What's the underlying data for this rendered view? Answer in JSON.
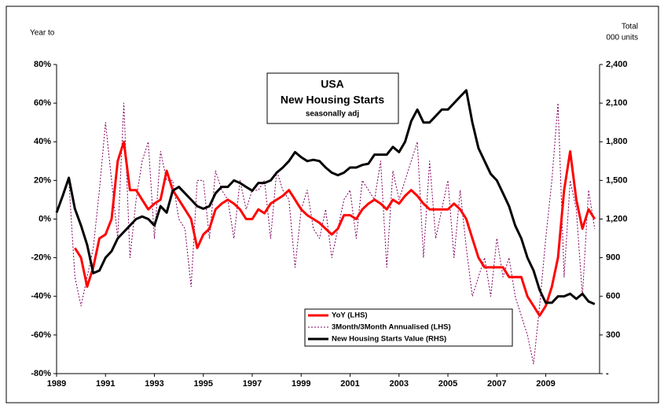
{
  "chart_data": {
    "type": "line",
    "title": [
      "USA",
      "New Housing Starts"
    ],
    "subtitle": "seasonally adj",
    "y_label": "Year to",
    "y2_label": [
      "Total",
      "000 units"
    ],
    "xlim": [
      1989,
      2011.2
    ],
    "xticks": [
      1989,
      1991,
      1993,
      1995,
      1997,
      1999,
      2001,
      2003,
      2005,
      2007,
      2009
    ],
    "ylim": [
      -80,
      80
    ],
    "yticks": [
      {
        "value": -80,
        "label": "-80%"
      },
      {
        "value": -60,
        "label": "-60%"
      },
      {
        "value": -40,
        "label": "-40%"
      },
      {
        "value": -20,
        "label": "-20%"
      },
      {
        "value": 0,
        "label": "0%"
      },
      {
        "value": 20,
        "label": "20%"
      },
      {
        "value": 40,
        "label": "40%"
      },
      {
        "value": 60,
        "label": "60%"
      },
      {
        "value": 80,
        "label": "80%"
      }
    ],
    "y2lim": [
      0,
      2400
    ],
    "y2ticks": [
      {
        "value": 0,
        "label": "-"
      },
      300,
      600,
      900,
      {
        "value": 1200,
        "label": "1,200"
      },
      {
        "value": 1500,
        "label": "1,500"
      },
      {
        "value": 1800,
        "label": "1,800"
      },
      {
        "value": 2100,
        "label": "2,100"
      },
      {
        "value": 2400,
        "label": "2,400"
      }
    ],
    "grid": false,
    "legend_position": "bottom",
    "x": [
      1989,
      1989.25,
      1989.5,
      1989.75,
      1990,
      1990.25,
      1990.5,
      1990.75,
      1991,
      1991.25,
      1991.5,
      1991.75,
      1992,
      1992.25,
      1992.5,
      1992.75,
      1993,
      1993.25,
      1993.5,
      1993.75,
      1994,
      1994.25,
      1994.5,
      1994.75,
      1995,
      1995.25,
      1995.5,
      1995.75,
      1996,
      1996.25,
      1996.5,
      1996.75,
      1997,
      1997.25,
      1997.5,
      1997.75,
      1998,
      1998.25,
      1998.5,
      1998.75,
      1999,
      1999.25,
      1999.5,
      1999.75,
      2000,
      2000.25,
      2000.5,
      2000.75,
      2001,
      2001.25,
      2001.5,
      2001.75,
      2002,
      2002.25,
      2002.5,
      2002.75,
      2003,
      2003.25,
      2003.5,
      2003.75,
      2004,
      2004.25,
      2004.5,
      2004.75,
      2005,
      2005.25,
      2005.5,
      2005.75,
      2006,
      2006.25,
      2006.5,
      2006.75,
      2007,
      2007.25,
      2007.5,
      2007.75,
      2008,
      2008.25,
      2008.5,
      2008.75,
      2009,
      2009.25,
      2009.5,
      2009.75,
      2010,
      2010.25,
      2010.5,
      2010.75,
      2011
    ],
    "series": [
      {
        "name": "YoY (LHS)",
        "color": "#ff0000",
        "width": 3,
        "dash": "none",
        "values": [
          null,
          null,
          null,
          -15,
          -20,
          -35,
          -25,
          -10,
          -8,
          0,
          30,
          40,
          15,
          15,
          10,
          5,
          8,
          10,
          25,
          15,
          10,
          5,
          0,
          -15,
          -8,
          -5,
          5,
          8,
          10,
          8,
          5,
          0,
          0,
          5,
          3,
          8,
          10,
          12,
          15,
          10,
          5,
          2,
          0,
          -2,
          -5,
          -8,
          -5,
          2,
          2,
          0,
          5,
          8,
          10,
          8,
          5,
          10,
          8,
          12,
          15,
          12,
          8,
          5,
          5,
          5,
          5,
          8,
          5,
          0,
          -10,
          -20,
          -25,
          -25,
          -25,
          -25,
          -30,
          -30,
          -30,
          -40,
          -45,
          -50,
          -45,
          -35,
          -20,
          15,
          35,
          10,
          -5,
          5,
          0
        ]
      },
      {
        "name": "3Month/3Month Annualised (LHS)",
        "color": "#800060",
        "width": 1,
        "dash": "2,2",
        "values": [
          null,
          null,
          20,
          -30,
          -45,
          -30,
          -15,
          15,
          50,
          20,
          -10,
          60,
          -20,
          10,
          30,
          40,
          -10,
          35,
          20,
          20,
          0,
          -5,
          -35,
          20,
          20,
          -10,
          25,
          15,
          10,
          -10,
          20,
          5,
          15,
          15,
          20,
          -10,
          25,
          15,
          10,
          -25,
          5,
          15,
          -5,
          -10,
          5,
          -20,
          -5,
          10,
          15,
          -10,
          20,
          15,
          10,
          30,
          -25,
          25,
          10,
          20,
          30,
          40,
          -20,
          30,
          -10,
          5,
          20,
          -20,
          15,
          -15,
          -40,
          -30,
          -20,
          -40,
          -10,
          -30,
          -20,
          -40,
          -50,
          -60,
          -75,
          -45,
          -10,
          20,
          60,
          -30,
          20,
          5,
          -40,
          15,
          -5
        ]
      },
      {
        "name": "New Housing Starts Value (RHS)",
        "color": "#000000",
        "width": 3,
        "dash": "none",
        "axis": "y2",
        "values": [
          1250,
          1380,
          1520,
          1280,
          1150,
          1000,
          780,
          800,
          900,
          950,
          1050,
          1100,
          1150,
          1200,
          1220,
          1200,
          1150,
          1300,
          1250,
          1420,
          1450,
          1400,
          1350,
          1300,
          1280,
          1300,
          1400,
          1450,
          1450,
          1500,
          1480,
          1450,
          1420,
          1480,
          1480,
          1500,
          1560,
          1600,
          1650,
          1720,
          1680,
          1650,
          1660,
          1650,
          1600,
          1560,
          1540,
          1560,
          1600,
          1600,
          1620,
          1630,
          1700,
          1700,
          1700,
          1760,
          1720,
          1800,
          1960,
          2050,
          1950,
          1950,
          2000,
          2050,
          2050,
          2100,
          2150,
          2200,
          1950,
          1750,
          1650,
          1550,
          1500,
          1400,
          1300,
          1150,
          1050,
          900,
          800,
          650,
          550,
          550,
          600,
          600,
          620,
          580,
          620,
          560,
          540
        ]
      }
    ]
  }
}
